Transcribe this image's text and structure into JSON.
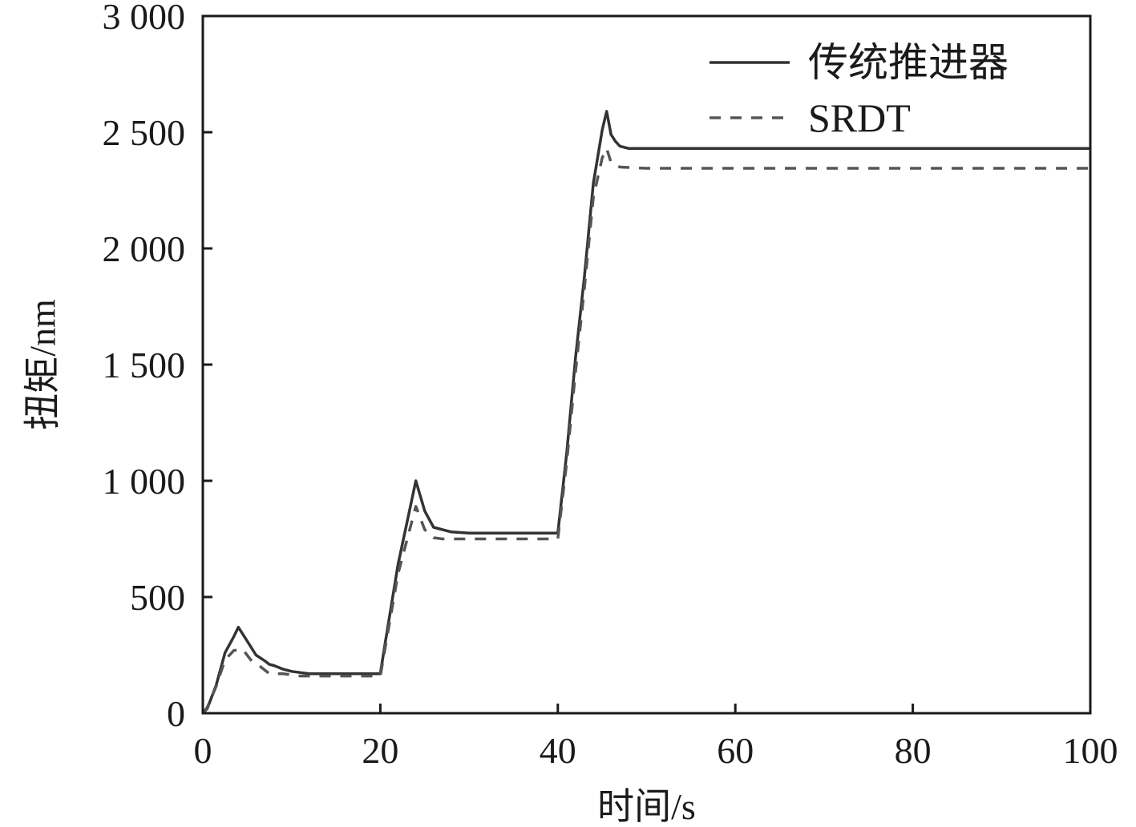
{
  "chart_data": {
    "type": "line",
    "title": "",
    "xlabel": "时间/s",
    "ylabel": "扭矩/nm",
    "xlim": [
      0,
      100
    ],
    "ylim": [
      0,
      3000
    ],
    "xticks": [
      0,
      20,
      40,
      60,
      80,
      100
    ],
    "xtick_labels": [
      "0",
      "20",
      "40",
      "60",
      "80",
      "100"
    ],
    "yticks": [
      0,
      500,
      1000,
      1500,
      2000,
      2500,
      3000
    ],
    "ytick_labels": [
      "0",
      "500",
      "1 000",
      "1 500",
      "2 000",
      "2 500",
      "3 000"
    ],
    "grid": false,
    "legend_position": "top-right",
    "series": [
      {
        "name": "传统推进器",
        "style": "solid",
        "color": "#333333",
        "x": [
          0,
          0.5,
          1.5,
          2.5,
          3.5,
          4.0,
          5.0,
          6.0,
          7.0,
          7.5,
          8.0,
          9.0,
          10.0,
          11.0,
          12.0,
          15.0,
          20.0,
          20.5,
          22.0,
          24.0,
          25.0,
          26.0,
          27.0,
          28.0,
          30.0,
          40.0,
          41.0,
          42.0,
          43.0,
          44.0,
          45.0,
          45.5,
          46.0,
          46.5,
          47.0,
          48.0,
          50.0,
          100.0
        ],
        "y": [
          0,
          20,
          120,
          260,
          330,
          370,
          310,
          250,
          225,
          210,
          205,
          190,
          180,
          175,
          170,
          170,
          170,
          290,
          640,
          1000,
          870,
          800,
          790,
          780,
          775,
          775,
          1120,
          1530,
          1880,
          2280,
          2510,
          2590,
          2490,
          2460,
          2440,
          2430,
          2430,
          2430
        ]
      },
      {
        "name": "SRDT",
        "style": "dashed",
        "color": "#555555",
        "x": [
          0,
          0.5,
          1.5,
          2.5,
          3.5,
          4.5,
          5.5,
          6.5,
          7.5,
          9.0,
          11.0,
          15.0,
          20.0,
          20.5,
          22.0,
          24.0,
          25.0,
          26.0,
          27.0,
          30.0,
          40.0,
          41.0,
          42.0,
          43.0,
          44.0,
          45.0,
          45.5,
          46.0,
          47.0,
          50.0,
          100.0
        ],
        "y": [
          0,
          25,
          115,
          230,
          270,
          275,
          225,
          200,
          170,
          170,
          160,
          160,
          160,
          270,
          600,
          890,
          790,
          755,
          750,
          750,
          750,
          1080,
          1470,
          1830,
          2220,
          2390,
          2430,
          2370,
          2350,
          2345,
          2345
        ]
      }
    ]
  }
}
